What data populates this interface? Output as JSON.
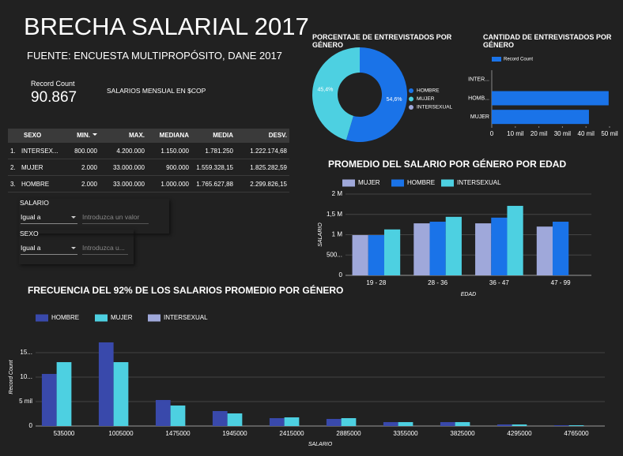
{
  "header": {
    "title": "BRECHA SALARIAL 2017",
    "subtitle": "FUENTE: ENCUESTA MULTIPROPÓSITO, DANE 2017"
  },
  "scorecard": {
    "label": "Record Count",
    "value": "90.867"
  },
  "note": "SALARIOS MENSUAL EN $COP",
  "table": {
    "columns": [
      "SEXO",
      "MIN.",
      "MAX.",
      "MEDIANA",
      "MEDIA",
      "DESV."
    ],
    "rows": [
      [
        "1.",
        "INTERSEX...",
        "800.000",
        "4.200.000",
        "1.150.000",
        "1.781.250",
        "1.222.174,68"
      ],
      [
        "2.",
        "MUJER",
        "2.000",
        "33.000.000",
        "900.000",
        "1.559.328,15",
        "1.825.282,59"
      ],
      [
        "3.",
        "HOMBRE",
        "2.000",
        "33.000.000",
        "1.000.000",
        "1.765.627,88",
        "2.299.826,15"
      ]
    ]
  },
  "filters": [
    {
      "label": "SALARIO",
      "operator": "Igual a",
      "placeholder": "Introduzca un valor"
    },
    {
      "label": "SEXO",
      "operator": "Igual a",
      "placeholder": "Introduzca u..."
    }
  ],
  "chart_data": [
    {
      "type": "pie",
      "title": "PORCENTAJE DE ENTREVISTADOS POR GÉNERO",
      "categories": [
        "HOMBRE",
        "MUJER",
        "INTERSEXUAL"
      ],
      "values": [
        54.6,
        45.4,
        0
      ],
      "value_labels": [
        "54,6%",
        "45,4%",
        null
      ],
      "colors": [
        "#1a73e8",
        "#4dd0e1",
        "#9fa8da"
      ]
    },
    {
      "type": "bar",
      "orientation": "horizontal",
      "title": "CANTIDAD DE ENTREVISTADOS POR GÉNERO",
      "categories": [
        "INTER...",
        "HOMB...",
        "MUJER"
      ],
      "series": [
        {
          "name": "Record Count",
          "color": "#1a73e8",
          "values": [
            0,
            49613,
            41254
          ]
        }
      ],
      "xlim": [
        0,
        50000
      ],
      "xticks": [
        0,
        {
          "value": 10000,
          "label": "10 mil"
        },
        {
          "value": 20000,
          "label": "20 mil"
        },
        {
          "value": 30000,
          "label": "30 mil"
        },
        {
          "value": 40000,
          "label": "40 mil"
        },
        {
          "value": 50000,
          "label": "50 mil"
        }
      ]
    },
    {
      "type": "bar",
      "title": "PROMEDIO DEL SALARIO POR GÉNERO POR EDAD",
      "categories": [
        "19 - 28",
        "28 - 36",
        "36 - 47",
        "47 - 99"
      ],
      "series": [
        {
          "name": "MUJER",
          "color": "#9fa8da",
          "values": [
            990000,
            1280000,
            1280000,
            1200000
          ]
        },
        {
          "name": "HOMBRE",
          "color": "#1a73e8",
          "values": [
            990000,
            1320000,
            1420000,
            1320000
          ]
        },
        {
          "name": "INTERSEXUAL",
          "color": "#4dd0e1",
          "values": [
            1130000,
            1440000,
            1710000,
            null
          ]
        }
      ],
      "ylim": [
        0,
        2000000
      ],
      "yticks": [
        0,
        {
          "value": 500000,
          "label": "500..."
        },
        {
          "value": 1000000,
          "label": "1 M"
        },
        {
          "value": 1500000,
          "label": "1,5 M"
        },
        {
          "value": 2000000,
          "label": "2 M"
        }
      ],
      "xlabel": "EDAD",
      "ylabel": "SALARIO",
      "grid": true
    },
    {
      "type": "bar",
      "title": "FRECUENCIA DEL 92% DE LOS SALARIOS PROMEDIO POR GÉNERO",
      "categories": [
        "535000",
        "1005000",
        "1475000",
        "1945000",
        "2415000",
        "2885000",
        "3355000",
        "3825000",
        "4295000",
        "4765000"
      ],
      "series": [
        {
          "name": "HOMBRE",
          "color": "#3949ab",
          "values": [
            10650,
            17100,
            5320,
            3060,
            1610,
            1450,
            800,
            800,
            320,
            160
          ]
        },
        {
          "name": "MUJER",
          "color": "#4dd0e1",
          "values": [
            13060,
            13060,
            4190,
            2580,
            1770,
            1610,
            800,
            800,
            320,
            160
          ]
        },
        {
          "name": "INTERSEXUAL",
          "color": "#9fa8da",
          "values": [
            0,
            0,
            0,
            0,
            0,
            0,
            0,
            0,
            0,
            0
          ]
        }
      ],
      "ylim": [
        0,
        20000
      ],
      "yticks": [
        0,
        {
          "value": 5000,
          "label": "5 mil"
        },
        {
          "value": 10000,
          "label": "10..."
        },
        {
          "value": 15000,
          "label": "15..."
        }
      ],
      "xlabel": "SALARIO",
      "ylabel": "Record Count",
      "grid": true
    }
  ]
}
